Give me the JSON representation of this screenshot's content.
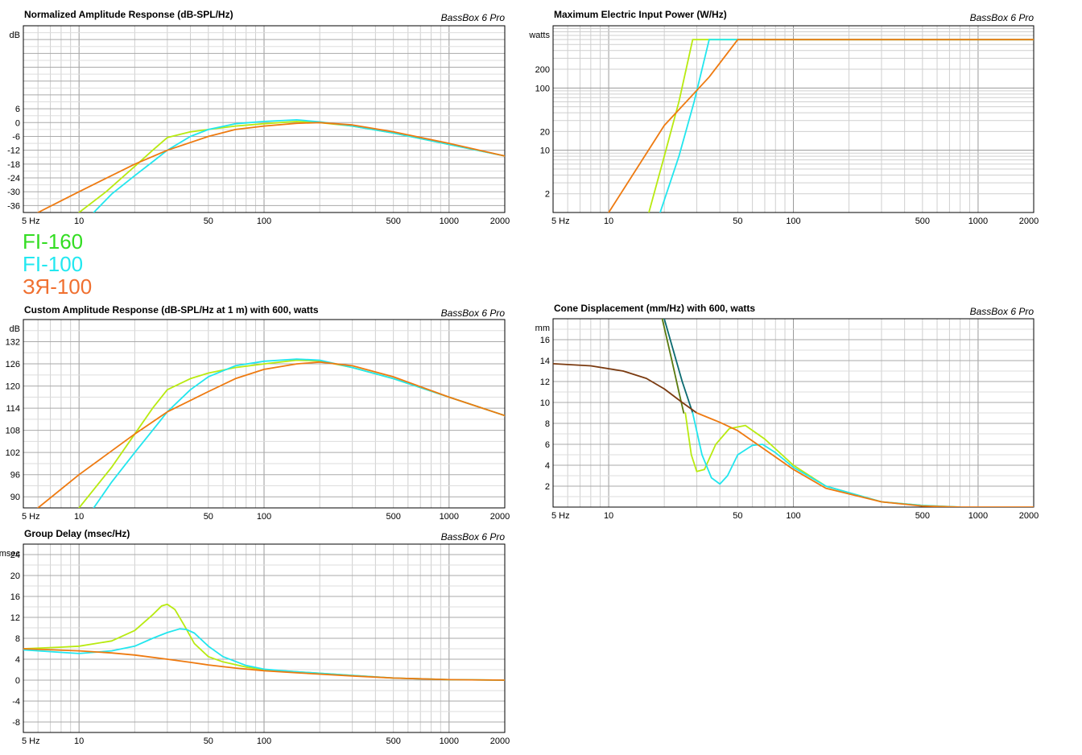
{
  "brand": "BassBox 6 Pro",
  "legend": [
    {
      "label": "FI-160",
      "color": "#33dd22"
    },
    {
      "label": "FI-100",
      "color": "#22e8f0"
    },
    {
      "label": "ЗЯ-100",
      "color": "#f07030"
    }
  ],
  "series_colors": {
    "fi160": "#b8ea10",
    "fi100": "#22e6ee",
    "zya100": "#ee7a10",
    "fi160_alt": "#5a7a10",
    "fi100_alt": "#0a6a70",
    "zya100_alt": "#7a3a10"
  },
  "chart_data": [
    {
      "id": "norm",
      "type": "line",
      "title": "Normalized Amplitude Response (dB-SPL/Hz)",
      "ylabel": "dB",
      "xscale": "log",
      "xlim": [
        5,
        2000
      ],
      "ylim": [
        -39,
        42
      ],
      "yticks": [
        -36,
        -30,
        -24,
        -18,
        -12,
        -6,
        0,
        6
      ],
      "xticks": [
        {
          "v": 5,
          "l": "5 Hz"
        },
        {
          "v": 10,
          "l": "10"
        },
        {
          "v": 50,
          "l": "50"
        },
        {
          "v": 100,
          "l": "100"
        },
        {
          "v": 500,
          "l": "500"
        },
        {
          "v": 1000,
          "l": "1000"
        },
        {
          "v": 2000,
          "l": "2000"
        }
      ],
      "series": [
        {
          "color_key": "fi160",
          "x": [
            10,
            14,
            20,
            25,
            30,
            40,
            50,
            70,
            100,
            150,
            200,
            300,
            500,
            1000,
            2000
          ],
          "y": [
            -39,
            -30,
            -19,
            -12,
            -6.5,
            -4,
            -3,
            -1.5,
            -0.5,
            0.5,
            0,
            -1.5,
            -4.5,
            -9.5,
            -14.5
          ]
        },
        {
          "color_key": "fi100",
          "x": [
            12,
            15,
            20,
            25,
            30,
            40,
            50,
            70,
            100,
            150,
            200,
            300,
            500,
            1000,
            2000
          ],
          "y": [
            -39,
            -31,
            -23,
            -17,
            -12,
            -6,
            -3,
            -0.5,
            0.5,
            1.2,
            0.3,
            -1.5,
            -4.5,
            -9.5,
            -14.5
          ]
        },
        {
          "color_key": "zya100",
          "x": [
            6,
            10,
            20,
            30,
            50,
            70,
            100,
            150,
            200,
            300,
            500,
            1000,
            2000
          ],
          "y": [
            -39,
            -30,
            -18,
            -12,
            -6,
            -3,
            -1.5,
            -0.3,
            0,
            -1,
            -4,
            -9,
            -14.5
          ]
        }
      ]
    },
    {
      "id": "power",
      "type": "line",
      "title": "Maximum Electric Input Power (W/Hz)",
      "ylabel": "watts",
      "xscale": "log",
      "xlim": [
        5,
        2000
      ],
      "yscale": "log",
      "ylim": [
        1,
        1000
      ],
      "yticks": [
        2,
        10,
        20,
        100,
        200
      ],
      "xticks": [
        {
          "v": 5,
          "l": "5 Hz"
        },
        {
          "v": 10,
          "l": "10"
        },
        {
          "v": 50,
          "l": "50"
        },
        {
          "v": 100,
          "l": "100"
        },
        {
          "v": 500,
          "l": "500"
        },
        {
          "v": 1000,
          "l": "1000"
        },
        {
          "v": 2000,
          "l": "2000"
        }
      ],
      "series": [
        {
          "color_key": "fi160",
          "x": [
            16.5,
            20,
            24,
            28.5,
            2000
          ],
          "y": [
            1,
            8,
            60,
            600,
            600
          ]
        },
        {
          "color_key": "fi100",
          "x": [
            19,
            24,
            29,
            35,
            2000
          ],
          "y": [
            1,
            8,
            60,
            600,
            600
          ]
        },
        {
          "color_key": "zya100",
          "x": [
            10,
            20,
            35,
            50,
            2000
          ],
          "y": [
            1,
            25,
            150,
            600,
            600
          ]
        }
      ]
    },
    {
      "id": "custom",
      "type": "line",
      "title": "Custom Amplitude Response (dB-SPL/Hz at 1 m) with 600, watts",
      "ylabel": "dB",
      "xscale": "log",
      "xlim": [
        5,
        2000
      ],
      "ylim": [
        87,
        138
      ],
      "yticks": [
        90,
        96,
        102,
        108,
        114,
        120,
        126,
        132
      ],
      "xticks": [
        {
          "v": 5,
          "l": "5 Hz"
        },
        {
          "v": 10,
          "l": "10"
        },
        {
          "v": 50,
          "l": "50"
        },
        {
          "v": 100,
          "l": "100"
        },
        {
          "v": 500,
          "l": "500"
        },
        {
          "v": 1000,
          "l": "1000"
        },
        {
          "v": 2000,
          "l": "2000"
        }
      ],
      "series": [
        {
          "color_key": "fi160",
          "x": [
            10,
            15,
            20,
            25,
            30,
            40,
            50,
            70,
            100,
            150,
            200,
            300,
            500,
            1000,
            2000
          ],
          "y": [
            87,
            98,
            107,
            114,
            119,
            122,
            123.5,
            125,
            126,
            127,
            126.8,
            125,
            122,
            117,
            112
          ]
        },
        {
          "color_key": "fi100",
          "x": [
            12,
            15,
            20,
            25,
            30,
            40,
            50,
            70,
            100,
            150,
            200,
            300,
            500,
            1000,
            2000
          ],
          "y": [
            87,
            94,
            102,
            108,
            113,
            119,
            122.5,
            125.5,
            126.7,
            127.3,
            127,
            125,
            122,
            117,
            112
          ]
        },
        {
          "color_key": "zya100",
          "x": [
            6,
            10,
            20,
            30,
            50,
            70,
            100,
            150,
            200,
            300,
            500,
            1000,
            2000
          ],
          "y": [
            87,
            96,
            107,
            113,
            118.5,
            122,
            124.5,
            126,
            126.5,
            125.5,
            122.5,
            117,
            112
          ]
        }
      ]
    },
    {
      "id": "cone",
      "type": "line",
      "title": "Cone Displacement (mm/Hz) with 600, watts",
      "ylabel": "mm",
      "xscale": "log",
      "xlim": [
        5,
        2000
      ],
      "ylim": [
        0,
        18
      ],
      "yticks": [
        2,
        4,
        6,
        8,
        10,
        12,
        14,
        16
      ],
      "xticks": [
        {
          "v": 5,
          "l": "5 Hz"
        },
        {
          "v": 10,
          "l": "10"
        },
        {
          "v": 50,
          "l": "50"
        },
        {
          "v": 100,
          "l": "100"
        },
        {
          "v": 500,
          "l": "500"
        },
        {
          "v": 1000,
          "l": "1000"
        },
        {
          "v": 2000,
          "l": "2000"
        }
      ],
      "series": [
        {
          "color_key": "fi160_alt",
          "x": [
            19.5,
            22,
            24,
            25.5
          ],
          "y": [
            18,
            14,
            11,
            9
          ]
        },
        {
          "color_key": "fi100_alt",
          "x": [
            20,
            25,
            28.5
          ],
          "y": [
            18,
            12,
            9
          ]
        },
        {
          "color_key": "zya100_alt",
          "x": [
            5,
            8,
            12,
            16,
            20,
            25,
            30
          ],
          "y": [
            13.7,
            13.5,
            13,
            12.3,
            11.3,
            10,
            9
          ]
        },
        {
          "color_key": "fi160",
          "x": [
            26,
            28,
            30,
            33,
            38,
            45,
            55,
            70,
            100,
            150,
            300,
            500,
            800
          ],
          "y": [
            9,
            5,
            3.4,
            3.6,
            6,
            7.5,
            7.8,
            6.5,
            4,
            2,
            0.5,
            0.15,
            0
          ]
        },
        {
          "color_key": "fi100",
          "x": [
            28.5,
            32,
            36,
            40,
            44,
            50,
            60,
            68,
            80,
            100,
            150,
            300,
            500,
            800
          ],
          "y": [
            9,
            5,
            2.8,
            2.2,
            3,
            5,
            5.9,
            6,
            5.2,
            3.8,
            2,
            0.5,
            0.15,
            0
          ]
        },
        {
          "color_key": "zya100",
          "x": [
            30,
            40,
            50,
            70,
            100,
            150,
            300,
            500,
            800,
            2000
          ],
          "y": [
            9,
            8.1,
            7.3,
            5.5,
            3.6,
            1.8,
            0.5,
            0.1,
            0,
            0
          ]
        }
      ]
    },
    {
      "id": "delay",
      "type": "line",
      "title": "Group Delay (msec/Hz)",
      "ylabel": "msec",
      "xscale": "log",
      "xlim": [
        5,
        2000
      ],
      "ylim": [
        -10,
        26
      ],
      "yticks": [
        -8,
        -4,
        0,
        4,
        8,
        12,
        16,
        20,
        24
      ],
      "xticks": [
        {
          "v": 5,
          "l": "5 Hz"
        },
        {
          "v": 10,
          "l": "10"
        },
        {
          "v": 50,
          "l": "50"
        },
        {
          "v": 100,
          "l": "100"
        },
        {
          "v": 500,
          "l": "500"
        },
        {
          "v": 1000,
          "l": "1000"
        },
        {
          "v": 2000,
          "l": "2000"
        }
      ],
      "series": [
        {
          "color_key": "fi160",
          "x": [
            5,
            8,
            10,
            15,
            20,
            25,
            28,
            30,
            33,
            37,
            42,
            50,
            60,
            80,
            100,
            150,
            300,
            500,
            1000,
            2000
          ],
          "y": [
            6,
            6.3,
            6.5,
            7.5,
            9.5,
            12.5,
            14.2,
            14.5,
            13.5,
            10.5,
            7,
            4.5,
            3.5,
            2.5,
            2,
            1.6,
            0.9,
            0.4,
            0.1,
            0
          ]
        },
        {
          "color_key": "fi100",
          "x": [
            5,
            8,
            10,
            15,
            20,
            25,
            30,
            35,
            38,
            42,
            50,
            60,
            80,
            100,
            150,
            300,
            500,
            1000,
            2000
          ],
          "y": [
            5.8,
            5.3,
            5.1,
            5.6,
            6.5,
            8,
            9.1,
            9.8,
            9.7,
            9,
            6.5,
            4.5,
            2.8,
            2.1,
            1.6,
            0.9,
            0.4,
            0.1,
            0
          ]
        },
        {
          "color_key": "zya100",
          "x": [
            5,
            10,
            15,
            20,
            30,
            40,
            50,
            70,
            100,
            150,
            300,
            500,
            1000,
            2000
          ],
          "y": [
            6,
            5.6,
            5.2,
            4.8,
            4,
            3.4,
            2.9,
            2.3,
            1.8,
            1.4,
            0.8,
            0.4,
            0.1,
            0
          ]
        }
      ]
    }
  ]
}
